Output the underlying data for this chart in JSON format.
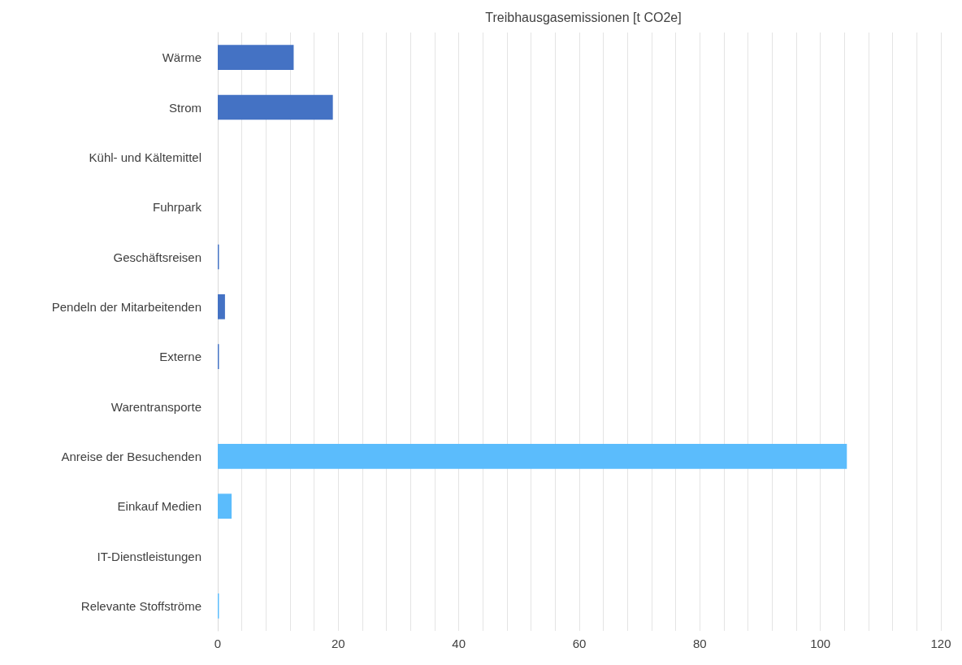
{
  "chart_data": {
    "type": "bar",
    "orientation": "horizontal",
    "title": "Treibhausgasemissionen [t CO2e]",
    "categories": [
      "Wärme",
      "Strom",
      "Kühl- und Kältemittel",
      "Fuhrpark",
      "Geschäftsreisen",
      "Pendeln der Mitarbeitenden",
      "Externe",
      "Warentransporte",
      "Anreise der Besuchenden",
      "Einkauf Medien",
      "IT-Dienstleistungen",
      "Relevante Stoffströme"
    ],
    "values": [
      12.6,
      19.1,
      0,
      0,
      0.2,
      1.2,
      0.2,
      0,
      104.4,
      2.3,
      0,
      0.2
    ],
    "colors": [
      "#4472c4",
      "#4472c4",
      "#4472c4",
      "#4472c4",
      "#4472c4",
      "#4472c4",
      "#4472c4",
      "#5bbcfc",
      "#5bbcfc",
      "#5bbcfc",
      "#5bbcfc",
      "#5bbcfc"
    ],
    "xlim": [
      0,
      120
    ],
    "xticks": [
      0,
      {
        "value": 4,
        "label": null
      },
      {
        "value": 8,
        "label": null
      },
      {
        "value": 12,
        "label": null
      },
      {
        "value": 16,
        "label": null
      },
      20,
      {
        "value": 24,
        "label": null
      },
      {
        "value": 28,
        "label": null
      },
      {
        "value": 32,
        "label": null
      },
      {
        "value": 36,
        "label": null
      },
      40,
      {
        "value": 44,
        "label": null
      },
      {
        "value": 48,
        "label": null
      },
      {
        "value": 52,
        "label": null
      },
      {
        "value": 56,
        "label": null
      },
      60,
      {
        "value": 64,
        "label": null
      },
      {
        "value": 68,
        "label": null
      },
      {
        "value": 72,
        "label": null
      },
      {
        "value": 76,
        "label": null
      },
      80,
      {
        "value": 84,
        "label": null
      },
      {
        "value": 88,
        "label": null
      },
      {
        "value": 92,
        "label": null
      },
      {
        "value": 96,
        "label": null
      },
      100,
      {
        "value": 104,
        "label": null
      },
      {
        "value": 108,
        "label": null
      },
      {
        "value": 112,
        "label": null
      },
      {
        "value": 116,
        "label": null
      },
      120
    ],
    "grid": "x"
  }
}
